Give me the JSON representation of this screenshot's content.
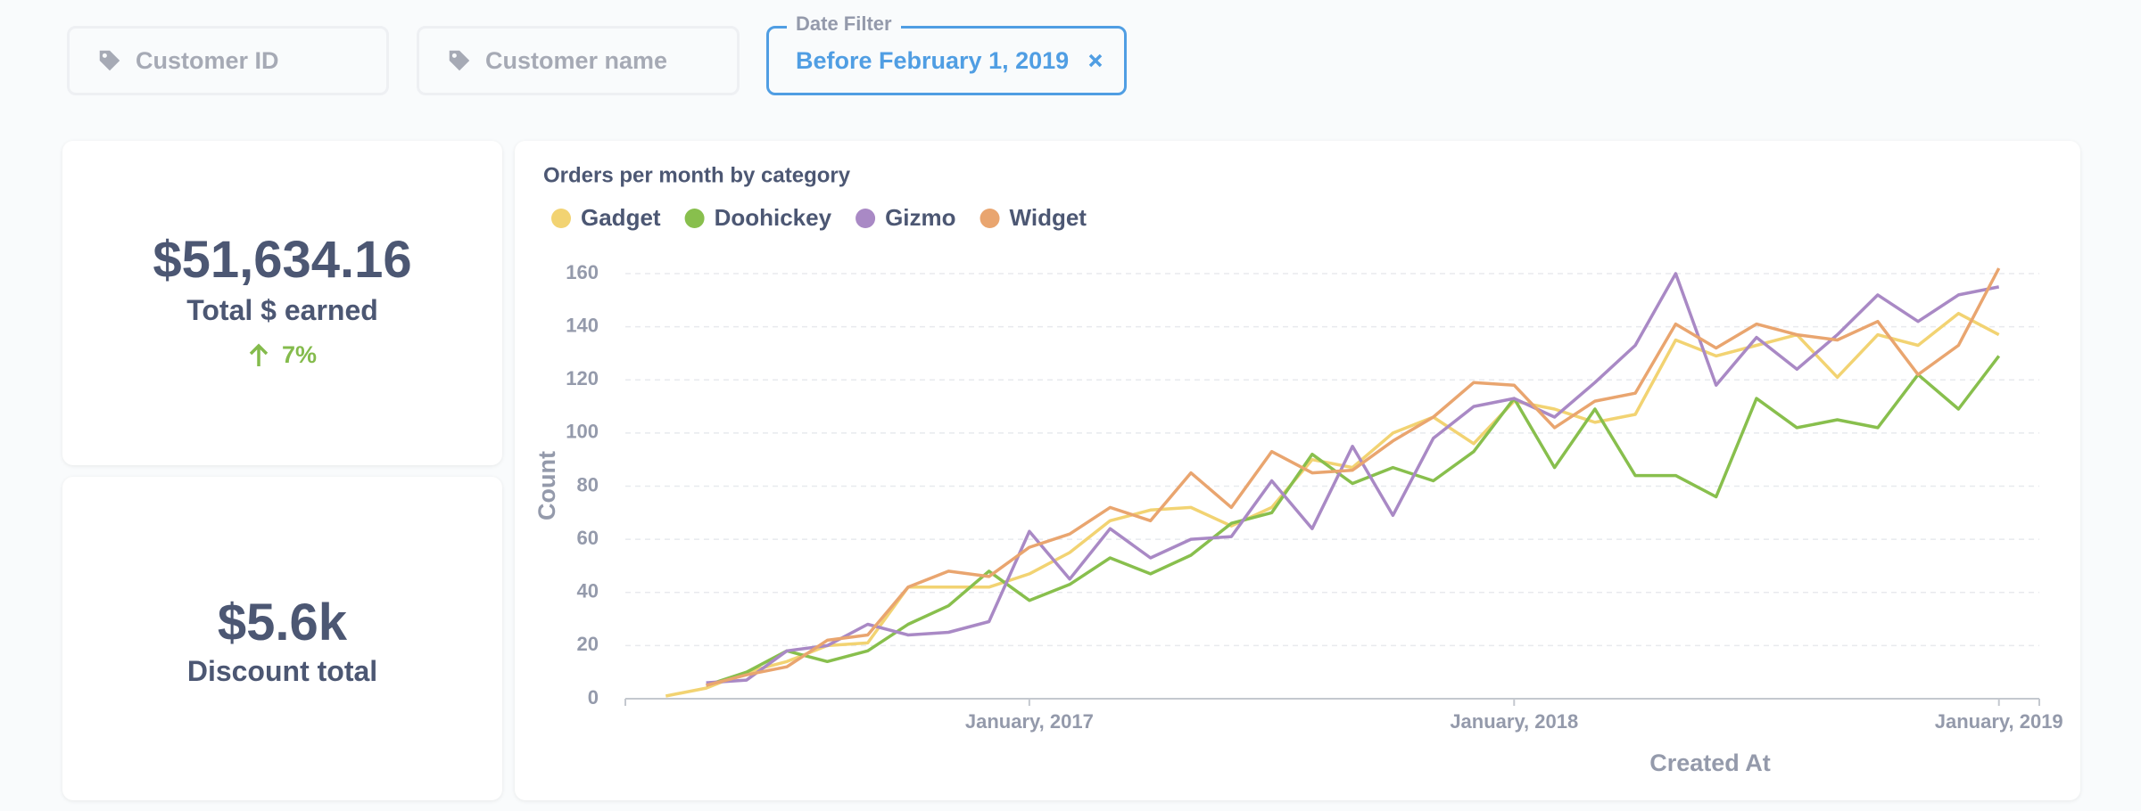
{
  "filters": [
    {
      "placeholder": "Customer ID"
    },
    {
      "placeholder": "Customer name"
    },
    {
      "label": "Date Filter",
      "value": "Before February 1, 2019"
    }
  ],
  "cards": [
    {
      "value": "$51,634.16",
      "label": "Total $ earned",
      "change": "7%"
    },
    {
      "value": "$5.6k",
      "label": "Discount total"
    }
  ],
  "chart_data": {
    "type": "line",
    "title": "Orders per month by category",
    "xlabel": "Created At",
    "ylabel": "Count",
    "x": [
      "2016-04",
      "2016-05",
      "2016-06",
      "2016-07",
      "2016-08",
      "2016-09",
      "2016-10",
      "2016-11",
      "2016-12",
      "2017-01",
      "2017-02",
      "2017-03",
      "2017-04",
      "2017-05",
      "2017-06",
      "2017-07",
      "2017-08",
      "2017-09",
      "2017-10",
      "2017-11",
      "2017-12",
      "2018-01",
      "2018-02",
      "2018-03",
      "2018-04",
      "2018-05",
      "2018-06",
      "2018-07",
      "2018-08",
      "2018-09",
      "2018-10",
      "2018-11",
      "2018-12",
      "2019-01"
    ],
    "xlim": [
      "2016-03",
      "2019-02"
    ],
    "xticks": [
      {
        "value": "2017-01",
        "label": "January, 2017"
      },
      {
        "value": "2018-01",
        "label": "January, 2018"
      },
      {
        "value": "2019-01",
        "label": "January, 2019"
      }
    ],
    "ylim": [
      0,
      160
    ],
    "yticks": [
      0,
      20,
      40,
      60,
      80,
      100,
      120,
      140,
      160
    ],
    "grid": true,
    "series": [
      {
        "name": "Gadget",
        "color": "#f2d372",
        "values": [
          1,
          4,
          10,
          14,
          20,
          21,
          42,
          42,
          42,
          47,
          55,
          67,
          71,
          72,
          65,
          72,
          90,
          87,
          100,
          106,
          96,
          112,
          109,
          104,
          107,
          135,
          129,
          133,
          137,
          121,
          137,
          133,
          145,
          137
        ]
      },
      {
        "name": "Doohickey",
        "color": "#88bf4d",
        "values": [
          null,
          5,
          10,
          18,
          14,
          18,
          28,
          35,
          48,
          37,
          43,
          53,
          47,
          54,
          66,
          70,
          92,
          81,
          87,
          82,
          93,
          113,
          87,
          109,
          84,
          84,
          76,
          113,
          102,
          105,
          102,
          122,
          109,
          129
        ]
      },
      {
        "name": "Gizmo",
        "color": "#a989c5",
        "values": [
          null,
          6,
          7,
          18,
          20,
          28,
          24,
          25,
          29,
          63,
          45,
          64,
          53,
          60,
          61,
          82,
          64,
          95,
          69,
          98,
          110,
          113,
          106,
          119,
          133,
          160,
          118,
          136,
          124,
          137,
          152,
          142,
          152,
          155
        ]
      },
      {
        "name": "Widget",
        "color": "#e9a56f",
        "values": [
          null,
          5,
          9,
          12,
          22,
          24,
          42,
          48,
          46,
          57,
          62,
          72,
          67,
          85,
          72,
          93,
          85,
          86,
          97,
          106,
          119,
          118,
          102,
          112,
          115,
          141,
          132,
          141,
          137,
          135,
          142,
          122,
          133,
          162
        ]
      }
    ]
  }
}
